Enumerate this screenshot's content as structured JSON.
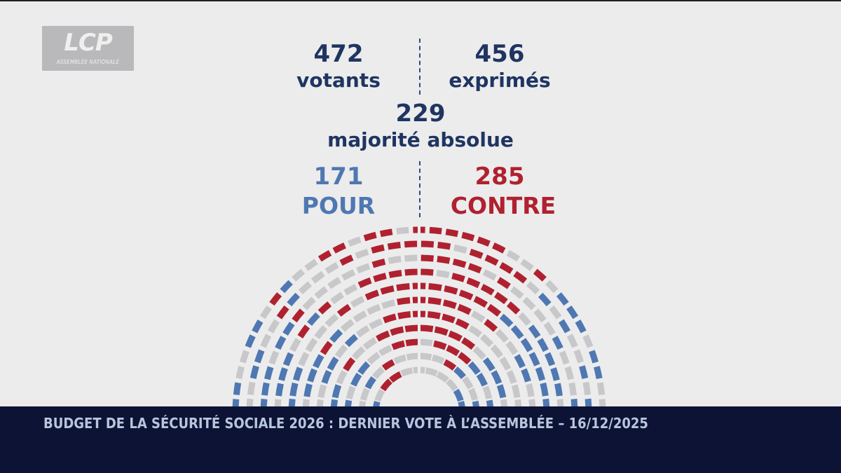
{
  "logo": {
    "brand": "LCP",
    "sub": "ASSEMBLÉE NATIONALE"
  },
  "stats": {
    "votants": {
      "value": "472",
      "label": "votants"
    },
    "exprimes": {
      "value": "456",
      "label": "exprimés"
    },
    "majority": {
      "value": "229",
      "label": "majorité absolue"
    },
    "pour": {
      "value": "171",
      "label": "POUR"
    },
    "contre": {
      "value": "285",
      "label": "CONTRE"
    }
  },
  "colors": {
    "pour": "#4f78b2",
    "contre": "#b0212f",
    "absent": "#c8c8ca",
    "navy": "#1f3561",
    "banner": "#0c1335"
  },
  "hemicycle": {
    "legend": {
      "pour": "POUR",
      "contre": "CONTRE"
    },
    "pour_count": 171,
    "contre_count": 285
  },
  "banner": {
    "title": "BUDGET DE LA SÉCURITÉ SOCIALE 2026 : DERNIER VOTE À L’ASSEMBLÉE – 16/12/2025"
  }
}
